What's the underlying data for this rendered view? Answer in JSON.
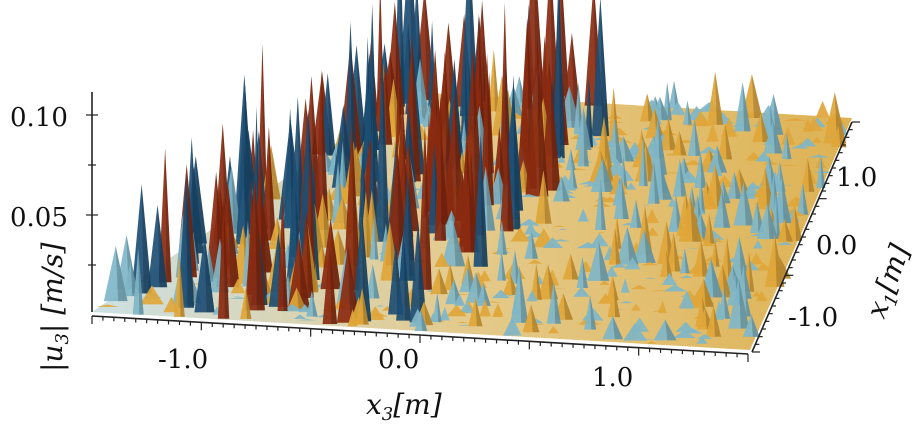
{
  "chart_data": {
    "type": "surface",
    "title": "",
    "z_axis": {
      "label_prefix": "|u",
      "label_sub": "3",
      "label_suffix": "| [m/s]",
      "ticks": [
        {
          "value": 0.1,
          "label": "0.10"
        },
        {
          "value": 0.05,
          "label": "0.05"
        }
      ],
      "range": [
        0.0,
        0.11
      ]
    },
    "x_axis": {
      "label_prefix": "x",
      "label_sub": "3",
      "label_suffix": "[m]",
      "ticks": [
        {
          "value": -1.0,
          "label": "-1.0"
        },
        {
          "value": 0.0,
          "label": "0.0"
        },
        {
          "value": 1.0,
          "label": "1.0"
        }
      ],
      "range": [
        -1.5,
        1.5
      ]
    },
    "y_axis": {
      "label_prefix": "x",
      "label_sub": "1",
      "label_suffix": "[m]",
      "ticks": [
        {
          "value": 1.0,
          "label": "1.0"
        },
        {
          "value": 0.0,
          "label": "0.0"
        },
        {
          "value": -1.0,
          "label": "-1.0"
        }
      ],
      "range": [
        -1.5,
        1.5
      ]
    },
    "colormap": {
      "low": "#e8f0ee",
      "mid_cool": "#7fb6c8",
      "mid_warm": "#e0a63a",
      "high_cool": "#1d4e74",
      "high_warm": "#8a2a10"
    },
    "description_regions": [
      {
        "x3_range": [
          -1.5,
          0.0
        ],
        "relative_height": "high"
      },
      {
        "x3_range": [
          0.0,
          1.5
        ],
        "relative_height": "low"
      }
    ]
  }
}
